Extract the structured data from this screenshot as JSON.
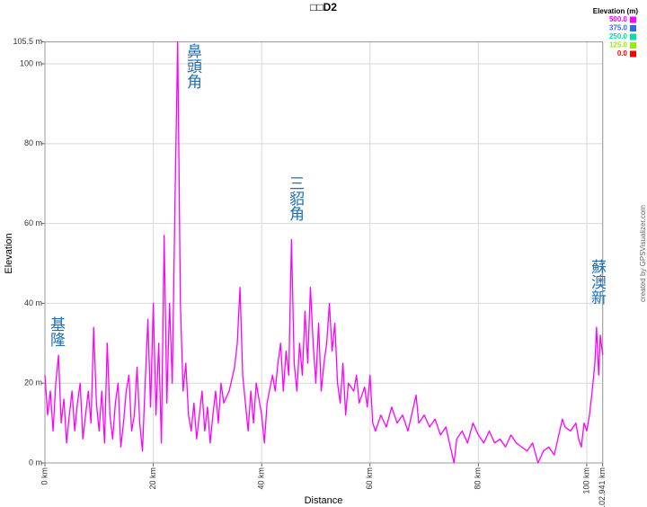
{
  "chart_data": {
    "type": "line",
    "title": "□□D2",
    "x_label": "Distance",
    "y_label": "Elevation",
    "credit": "created by GPSVisualizer.com",
    "legend_title": "Elevation (m)",
    "color_scale": [
      {
        "value": 500,
        "label": "500.0",
        "color": "#ff00ff"
      },
      {
        "value": 375,
        "label": "375.0",
        "color": "#3366ff"
      },
      {
        "value": 250,
        "label": "250.0",
        "color": "#00e0a0"
      },
      {
        "value": 125,
        "label": "125.0",
        "color": "#99ee00"
      },
      {
        "value": 0,
        "label": "0.0",
        "color": "#ff0000"
      }
    ],
    "annotations": [
      "基隆",
      "鼻頭角",
      "三貂角",
      "蘇澳新"
    ],
    "xlim": [
      0,
      102.941
    ],
    "ylim": [
      0,
      105.5
    ],
    "xticks": [
      {
        "value": 0,
        "label": "0 km"
      },
      {
        "value": 20,
        "label": "20 km"
      },
      {
        "value": 40,
        "label": "40 km"
      },
      {
        "value": 60,
        "label": "60 km"
      },
      {
        "value": 80,
        "label": "80 km"
      },
      {
        "value": 100,
        "label": "100 km"
      },
      {
        "value": 102.941,
        "label": "102.941 km"
      }
    ],
    "yticks": [
      {
        "value": 0,
        "label": "0 m"
      },
      {
        "value": 20,
        "label": "20 m"
      },
      {
        "value": 40,
        "label": "40 m"
      },
      {
        "value": 60,
        "label": "60 m"
      },
      {
        "value": 80,
        "label": "80 m"
      },
      {
        "value": 100,
        "label": "100 m"
      },
      {
        "value": 105.5,
        "label": "105.5 m"
      }
    ],
    "grid": true,
    "x": [
      0,
      0.5,
      1,
      1.5,
      2,
      2.5,
      3,
      3.5,
      4,
      4.5,
      5,
      5.5,
      6,
      6.5,
      7,
      7.5,
      8,
      8.5,
      9,
      9.5,
      10,
      10.5,
      11,
      11.5,
      12,
      12.5,
      13,
      13.5,
      14,
      14.5,
      15,
      15.5,
      16,
      16.5,
      17,
      17.5,
      18,
      18.5,
      19,
      19.5,
      20,
      20.5,
      21,
      21.5,
      22,
      22.5,
      23,
      23.5,
      24,
      24.5,
      25,
      25.5,
      26,
      26.5,
      27,
      27.5,
      28,
      28.5,
      29,
      29.5,
      30,
      30.5,
      31,
      31.5,
      32,
      32.5,
      33,
      34,
      35,
      35.5,
      36,
      36.5,
      37,
      37.5,
      38,
      38.5,
      39,
      40,
      40.5,
      41,
      42,
      42.5,
      43,
      43.5,
      44,
      44.5,
      45,
      45.5,
      46,
      46.5,
      47,
      47.5,
      48,
      48.5,
      49,
      49.5,
      50,
      50.5,
      51,
      51.5,
      52,
      52.5,
      53,
      53.5,
      54,
      54.5,
      55,
      55.5,
      56,
      57,
      57.5,
      58,
      59,
      59.5,
      60,
      60.5,
      61,
      62,
      63,
      64,
      65,
      66,
      67,
      68,
      68.5,
      69,
      70,
      71,
      72,
      73,
      74,
      75,
      75.5,
      76,
      77,
      78,
      79,
      80,
      81,
      82,
      83,
      84,
      85,
      86,
      87,
      88,
      89,
      90,
      91,
      92,
      93,
      94,
      95,
      95.5,
      96,
      97,
      98,
      98.5,
      99,
      99.5,
      100,
      100.5,
      101,
      101.5,
      101.8,
      102.2,
      102.5,
      102.941
    ],
    "values": [
      22,
      12,
      18,
      8,
      20,
      27,
      10,
      16,
      5,
      12,
      18,
      8,
      15,
      20,
      6,
      12,
      18,
      10,
      34,
      15,
      8,
      18,
      5,
      30,
      12,
      6,
      15,
      20,
      4,
      10,
      18,
      22,
      8,
      12,
      24,
      10,
      3,
      20,
      36,
      14,
      40,
      12,
      30,
      5,
      57,
      15,
      40,
      20,
      65,
      105.5,
      40,
      18,
      25,
      12,
      8,
      15,
      6,
      12,
      18,
      8,
      14,
      5,
      12,
      18,
      10,
      20,
      15,
      18,
      24,
      30,
      44,
      22,
      15,
      8,
      18,
      10,
      20,
      12,
      5,
      15,
      22,
      18,
      25,
      30,
      18,
      28,
      22,
      56,
      25,
      18,
      30,
      22,
      38,
      25,
      44,
      30,
      20,
      35,
      18,
      25,
      30,
      40,
      28,
      35,
      20,
      15,
      25,
      12,
      20,
      18,
      22,
      15,
      19,
      14,
      22,
      10,
      8,
      12,
      9,
      14,
      10,
      12,
      8,
      14,
      17,
      10,
      12,
      9,
      11,
      7,
      9,
      3,
      0,
      6,
      8,
      5,
      10,
      7,
      5,
      8,
      5,
      6,
      4,
      7,
      5,
      4,
      3,
      5,
      0,
      3,
      4,
      2,
      8,
      11,
      9,
      8,
      10,
      6,
      4,
      10,
      8,
      12,
      18,
      25,
      34,
      22,
      32,
      27
    ]
  }
}
